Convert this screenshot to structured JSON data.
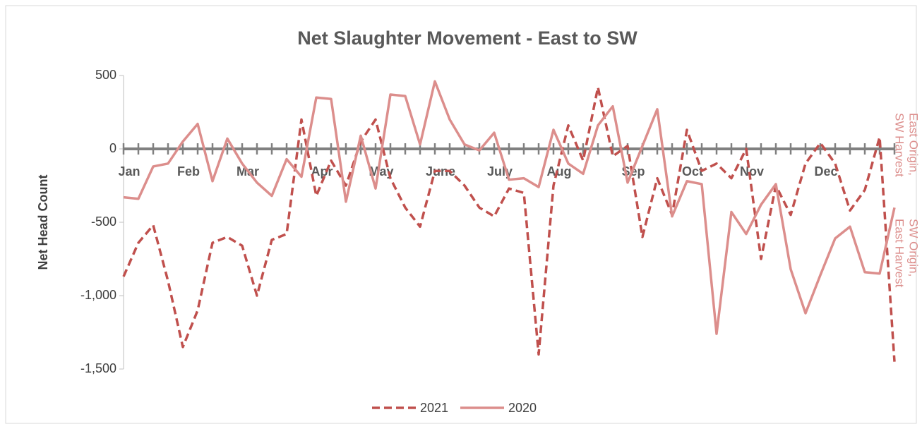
{
  "chart_data": {
    "type": "line",
    "title": "Net Slaughter Movement - East to SW",
    "y_label": "Net Head Count",
    "annotations": [
      {
        "lines": [
          "East Origin,",
          "SW Harvest"
        ]
      },
      {
        "lines": [
          "SW Origin,",
          "East Harvest"
        ]
      }
    ],
    "categories": [
      "Jan",
      null,
      null,
      null,
      "Feb",
      null,
      null,
      null,
      "Mar",
      null,
      null,
      null,
      null,
      "Apr",
      null,
      null,
      null,
      "May",
      null,
      null,
      null,
      "June",
      null,
      null,
      null,
      "July",
      null,
      null,
      null,
      "Aug",
      null,
      null,
      null,
      null,
      "Sep",
      null,
      null,
      null,
      "Oct",
      null,
      null,
      null,
      "Nov",
      null,
      null,
      null,
      null,
      "Dec",
      null,
      null,
      null,
      null,
      null
    ],
    "series": [
      {
        "name": "2021",
        "color": "#c0504d",
        "dash": true,
        "values": [
          -870,
          -640,
          -520,
          -900,
          -1350,
          -1100,
          -640,
          -600,
          -660,
          -1000,
          -620,
          -580,
          200,
          -320,
          -80,
          -250,
          50,
          200,
          -200,
          -400,
          -530,
          -150,
          -150,
          -250,
          -400,
          -460,
          -270,
          -300,
          -1400,
          -250,
          160,
          -80,
          420,
          -50,
          20,
          -600,
          -200,
          -450,
          130,
          -150,
          -100,
          -200,
          0,
          -750,
          -250,
          -450,
          -100,
          40,
          -100,
          -420,
          -280,
          80,
          -1450
        ]
      },
      {
        "name": "2020",
        "color": "#dc8e8c",
        "dash": false,
        "values": [
          -330,
          -340,
          -120,
          -100,
          50,
          170,
          -220,
          70,
          -100,
          -230,
          -320,
          -70,
          -190,
          350,
          340,
          -360,
          90,
          -270,
          370,
          360,
          30,
          460,
          200,
          30,
          -10,
          110,
          -210,
          -200,
          -260,
          130,
          -100,
          -170,
          160,
          290,
          -230,
          20,
          270,
          -460,
          -220,
          -240,
          -1260,
          -430,
          -580,
          -380,
          -240,
          -820,
          -1120,
          -860,
          -610,
          -530,
          -840,
          -850,
          -400
        ]
      }
    ],
    "ylim": [
      -1500,
      500
    ],
    "yticks": [
      {
        "value": -1500,
        "label": "-1,500"
      },
      {
        "value": -1000,
        "label": "-1,000"
      },
      -500,
      0,
      500
    ],
    "grid": false
  }
}
